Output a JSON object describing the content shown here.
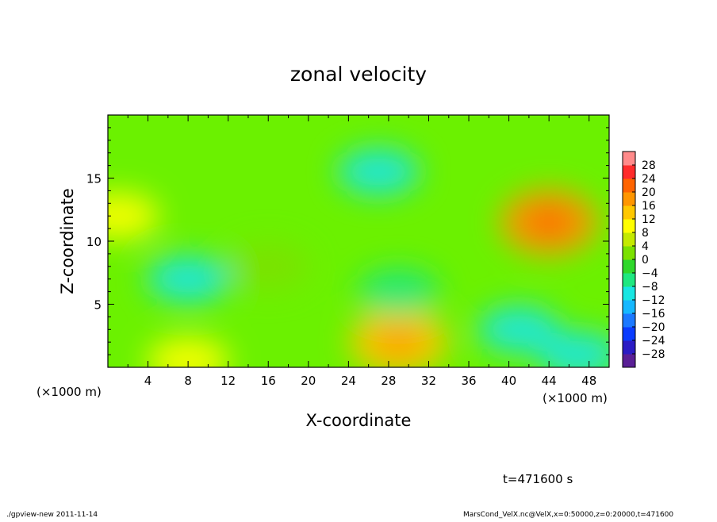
{
  "chart_data": {
    "type": "heatmap",
    "title": "zonal velocity",
    "xlabel": "X-coordinate",
    "ylabel": "Z-coordinate",
    "x_unit_label": "(×1000 m)",
    "xlim": [
      0,
      50
    ],
    "ylim": [
      0,
      20
    ],
    "xticks": [
      "4",
      "8",
      "12",
      "16",
      "20",
      "24",
      "28",
      "32",
      "36",
      "40",
      "44",
      "48"
    ],
    "yticks": [
      "5",
      "10",
      "15"
    ],
    "colorbar_labels": [
      "28",
      "24",
      "20",
      "16",
      "12",
      "8",
      "4",
      "0",
      "−4",
      "−8",
      "−12",
      "−16",
      "−20",
      "−24",
      "−28"
    ],
    "color_levels": [
      -30,
      30
    ],
    "features": [
      {
        "x": 27,
        "z": 15.5,
        "value": -9
      },
      {
        "x": 44,
        "z": 11.5,
        "value": 18
      },
      {
        "x": 29,
        "z": 2,
        "value": 12
      },
      {
        "x": 8,
        "z": 0.5,
        "value": 9
      },
      {
        "x": 41,
        "z": 3,
        "value": -10
      },
      {
        "x": 8,
        "z": 7,
        "value": -8
      },
      {
        "x": 1,
        "z": 12,
        "value": 8
      },
      {
        "x": 16,
        "z": 8,
        "value": 3
      },
      {
        "x": 47,
        "z": 1,
        "value": -8
      },
      {
        "x": 29,
        "z": 6,
        "value": -4
      }
    ]
  },
  "annotation": "t=471600 s",
  "footer": {
    "left": "./gpview-new  2011-11-14",
    "right": "MarsCond_VelX.nc@VelX,x=0:50000,z=0:20000,t=471600"
  }
}
